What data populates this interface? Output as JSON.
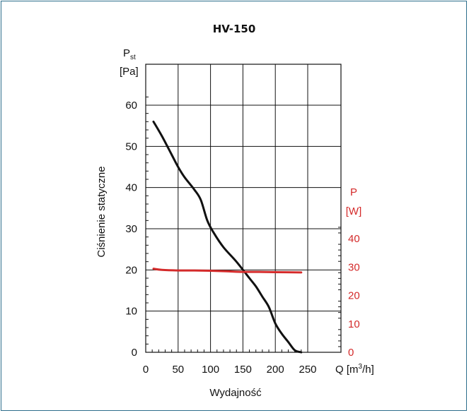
{
  "chart_data": {
    "type": "line",
    "title": "HV-150",
    "xlabel": "Wydajność",
    "x_unit_label": "Q [m",
    "x_unit_sup": "3",
    "x_unit_tail": "/h]",
    "x_ticks": [
      0,
      50,
      100,
      150,
      200,
      250
    ],
    "xlim": [
      0,
      250
    ],
    "ylabel": "Ciśnienie statyczne",
    "y_unit_main": "P",
    "y_unit_sub": "st",
    "y_unit_line2": "[Pa]",
    "y_ticks": [
      0,
      10,
      20,
      30,
      40,
      50,
      60
    ],
    "ylim": [
      0,
      63
    ],
    "y2_unit_line1": "P",
    "y2_unit_line2": "[W]",
    "y2_ticks": [
      0,
      10,
      20,
      30,
      40
    ],
    "y2lim": [
      0,
      44
    ],
    "grid": true,
    "series": [
      {
        "axis": "left",
        "color": "#111111",
        "x": [
          12,
          25,
          40,
          50,
          60,
          75,
          85,
          95,
          105,
          120,
          140,
          160,
          170,
          180,
          190,
          200,
          210,
          220,
          230,
          240
        ],
        "y": [
          56,
          52.5,
          48,
          45,
          42.5,
          39.5,
          37,
          32,
          29,
          25.5,
          22,
          18,
          16,
          13.5,
          11,
          7,
          4.5,
          2.5,
          0.5,
          0
        ]
      },
      {
        "axis": "right",
        "color": "#d42a2a",
        "x": [
          12,
          25,
          50,
          75,
          100,
          125,
          150,
          175,
          200,
          240
        ],
        "y": [
          29.4,
          29.0,
          28.8,
          28.8,
          28.7,
          28.5,
          28.3,
          28.3,
          28.2,
          28.1
        ]
      }
    ]
  }
}
